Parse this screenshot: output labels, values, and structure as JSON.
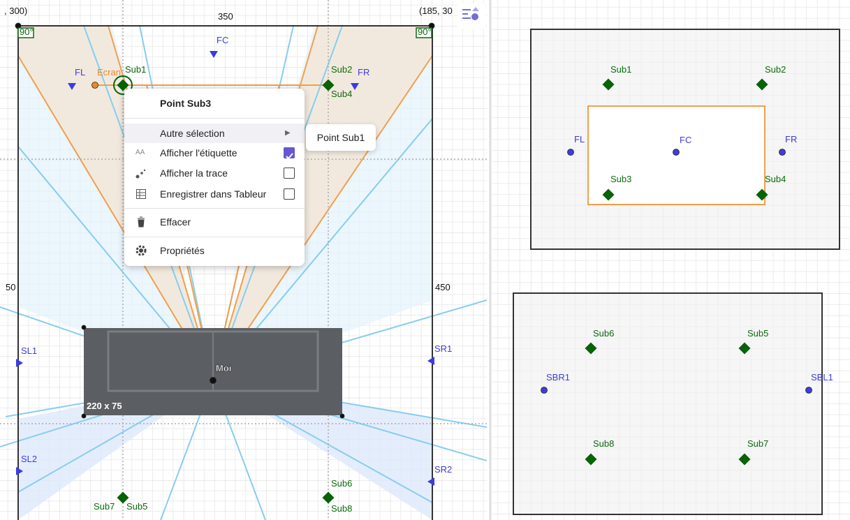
{
  "graphics_left": {
    "labels": [
      ", 300)",
      "350",
      "(185, 30",
      "90°",
      "90°",
      "FC",
      "FL",
      "Ecran",
      "Sub1",
      "Sub2",
      "FR",
      "Sub4",
      "50",
      "450",
      "SL1",
      "SR1",
      "Moi",
      "220 x 75",
      "SL2",
      "SR2",
      "Sub7",
      "Sub5",
      "Sub6",
      "Sub8"
    ]
  },
  "context_menu": {
    "title": "Point Sub3",
    "items": [
      "Autre sélection",
      "Afficher l'étiquette",
      "Afficher la trace",
      "Enregistrer dans Tableur",
      "Effacer",
      "Propriétés"
    ],
    "submenu": "Point Sub1"
  },
  "graphics_right_top": {
    "labels": [
      "Sub1",
      "Sub2",
      "FL",
      "FC",
      "FR",
      "Sub3",
      "Sub4"
    ]
  },
  "graphics_right_bottom": {
    "labels": [
      "Sub6",
      "Sub5",
      "SBR1",
      "SBL1",
      "Sub8",
      "Sub7"
    ]
  }
}
